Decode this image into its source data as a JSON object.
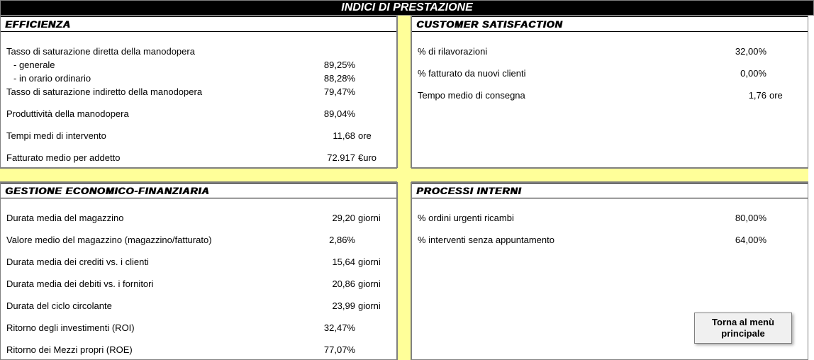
{
  "page_title": "INDICI DI PRESTAZIONE",
  "efficienza": {
    "header": "EFFICIENZA",
    "r1_label": "Tasso di saturazione diretta della manodopera",
    "r1a_label": " - generale",
    "r1a_value": "89,25%",
    "r1b_label": " - in orario ordinario",
    "r1b_value": "88,28%",
    "r2_label": "Tasso di saturazione indiretto della manodopera",
    "r2_value": "79,47%",
    "r3_label": "Produttività della manodopera",
    "r3_value": "89,04%",
    "r4_label": "Tempi medi di intervento",
    "r4_value": "11,68",
    "r4_unit": "ore",
    "r5_label": "Fatturato medio per addetto",
    "r5_value": "72.917",
    "r5_unit": "€uro"
  },
  "customer": {
    "header": "CUSTOMER SATISFACTION",
    "r1_label": "% di rilavorazioni",
    "r1_value": "32,00%",
    "r2_label": "% fatturato da nuovi clienti",
    "r2_value": "0,00%",
    "r3_label": "Tempo medio di consegna",
    "r3_value": "1,76",
    "r3_unit": "ore"
  },
  "gestione": {
    "header": "GESTIONE ECONOMICO-FINANZIARIA",
    "r1_label": "Durata media del magazzino",
    "r1_value": "29,20",
    "r1_unit": "giorni",
    "r2_label": "Valore medio del magazzino (magazzino/fatturato)",
    "r2_value": "2,86%",
    "r3_label": "Durata media dei crediti vs. i clienti",
    "r3_value": "15,64",
    "r3_unit": "giorni",
    "r4_label": "Durata media dei debiti vs. i fornitori",
    "r4_value": "20,86",
    "r4_unit": "giorni",
    "r5_label": "Durata del ciclo circolante",
    "r5_value": "23,99",
    "r5_unit": "giorni",
    "r6_label": "Ritorno degli investimenti (ROI)",
    "r6_value": "32,47%",
    "r7_label": "Ritorno dei Mezzi propri (ROE)",
    "r7_value": "77,07%"
  },
  "processi": {
    "header": "PROCESSI INTERNI",
    "r1_label": "% ordini urgenti ricambi",
    "r1_value": "80,00%",
    "r2_label": "% interventi senza appuntamento",
    "r2_value": "64,00%"
  },
  "button": {
    "label": "Torna al menù principale"
  },
  "colors": {
    "highlight_bg": "#ffff99",
    "header_bg": "#000000",
    "header_fg": "#ffffff",
    "border": "#808080"
  }
}
